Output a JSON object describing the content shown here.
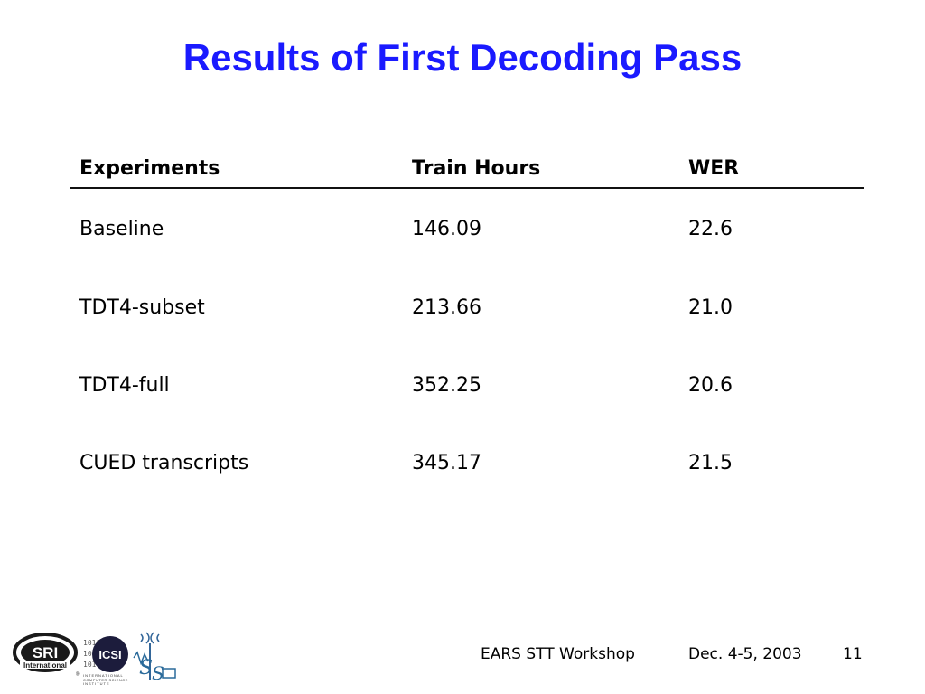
{
  "slide": {
    "title": "Results of First Decoding Pass"
  },
  "table": {
    "headers": [
      "Experiments",
      "Train Hours",
      "WER"
    ],
    "rows": [
      [
        "Baseline",
        "146.09",
        "22.6"
      ],
      [
        "TDT4-subset",
        "213.66",
        "21.0"
      ],
      [
        "TDT4-full",
        "352.25",
        "20.6"
      ],
      [
        "CUED transcripts",
        "345.17",
        "21.5"
      ]
    ]
  },
  "footer": {
    "event": "EARS STT Workshop",
    "date": "Dec. 4-5, 2003",
    "page_number": "11",
    "logos": {
      "sri": "SRI International",
      "icsi": "ICSI",
      "icsi_sub": "INTERNATIONAL COMPUTER SCIENCE INSTITUTE"
    }
  }
}
